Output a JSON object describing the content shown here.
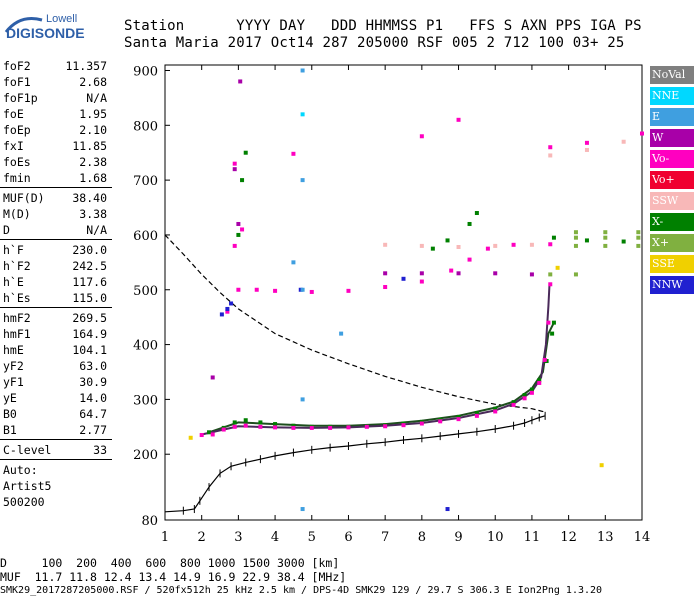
{
  "logo": {
    "line1": "Lowell",
    "line2": "DIGISONDE"
  },
  "header": {
    "row1": [
      "Station",
      "YYYY DAY",
      "DDD HHMMSS P1",
      "FFS S AXN PPS IGA PS"
    ],
    "row2": [
      "Santa Maria",
      "2017 Oct14",
      "287 205000 RSF",
      "005 2 712 100 03+ 25"
    ]
  },
  "params": {
    "group1": [
      {
        "label": "foF2",
        "value": "11.357"
      },
      {
        "label": "foF1",
        "value": "2.68"
      },
      {
        "label": "foF1p",
        "value": "N/A"
      },
      {
        "label": "foE",
        "value": "1.95"
      },
      {
        "label": "foEp",
        "value": "2.10"
      },
      {
        "label": "fxI",
        "value": "11.85"
      },
      {
        "label": "foEs",
        "value": "2.38"
      },
      {
        "label": "fmin",
        "value": "1.68"
      }
    ],
    "group2": [
      {
        "label": "MUF(D)",
        "value": "38.40"
      },
      {
        "label": "M(D)",
        "value": "3.38"
      },
      {
        "label": "D",
        "value": "N/A"
      }
    ],
    "group3": [
      {
        "label": "h`F",
        "value": "230.0"
      },
      {
        "label": "h`F2",
        "value": "242.5"
      },
      {
        "label": "h`E",
        "value": "117.6"
      },
      {
        "label": "h`Es",
        "value": "115.0"
      }
    ],
    "group4": [
      {
        "label": "hmF2",
        "value": "269.5"
      },
      {
        "label": "hmF1",
        "value": "164.9"
      },
      {
        "label": "hmE",
        "value": "104.1"
      },
      {
        "label": "yF2",
        "value": "63.0"
      },
      {
        "label": "yF1",
        "value": "30.9"
      },
      {
        "label": "yE",
        "value": "14.0"
      },
      {
        "label": "B0",
        "value": "64.7"
      },
      {
        "label": "B1",
        "value": "2.77"
      }
    ],
    "group5": [
      {
        "label": "C-level",
        "value": "33"
      }
    ],
    "group6": [
      "Auto:",
      "Artist5",
      "500200"
    ]
  },
  "legend": [
    {
      "label": "NoVal",
      "color": "#7f7f7f"
    },
    {
      "label": "NNE",
      "color": "#00d8ff"
    },
    {
      "label": "E",
      "color": "#3f9fe0"
    },
    {
      "label": "W",
      "color": "#a800a8"
    },
    {
      "label": "Vo-",
      "color": "#ff00c0"
    },
    {
      "label": "Vo+",
      "color": "#f00030"
    },
    {
      "label": "SSW",
      "color": "#f8b8b8"
    },
    {
      "label": "X-",
      "color": "#008000"
    },
    {
      "label": "X+",
      "color": "#80b040"
    },
    {
      "label": "SSE",
      "color": "#f0d000"
    },
    {
      "label": "NNW",
      "color": "#2020d0"
    }
  ],
  "bottom": {
    "line1": "D     100  200  400  600  800 1000 1500 3000 [km]",
    "line2": "MUF  11.7 11.8 12.4 13.4 14.9 16.9 22.9 38.4 [MHz]",
    "line3": "SMK29_2017287205000.RSF / 520fx512h 25 kHz 2.5 km / DPS-4D SMK29 129 / 29.7 S 306.3 E Ion2Png 1.3.20"
  },
  "chart_data": {
    "type": "scatter",
    "x_ticks": [
      1,
      2,
      3,
      4,
      5,
      6,
      7,
      8,
      9,
      10,
      11,
      12,
      13,
      14
    ],
    "y_ticks": [
      80,
      200,
      300,
      400,
      500,
      600,
      700,
      800,
      900
    ],
    "xlim": [
      1,
      14
    ],
    "ylim": [
      80,
      910
    ],
    "xlabel": "",
    "ylabel": "",
    "grid": false,
    "legend_position": "right",
    "series": [
      {
        "name": "X-",
        "color": "#008000",
        "points": [
          [
            2.2,
            240
          ],
          [
            2.6,
            248
          ],
          [
            2.9,
            258
          ],
          [
            3.2,
            262
          ],
          [
            3.6,
            258
          ],
          [
            4,
            255
          ],
          [
            4.5,
            252
          ],
          [
            5,
            250
          ],
          [
            5.5,
            250
          ],
          [
            6,
            250
          ],
          [
            6.5,
            251
          ],
          [
            7,
            253
          ],
          [
            7.5,
            256
          ],
          [
            8,
            259
          ],
          [
            8.5,
            263
          ],
          [
            9,
            268
          ],
          [
            9.5,
            275
          ],
          [
            10,
            283
          ],
          [
            10.5,
            295
          ],
          [
            10.8,
            308
          ],
          [
            11,
            318
          ],
          [
            11.2,
            335
          ],
          [
            11.4,
            370
          ],
          [
            11.55,
            420
          ],
          [
            11.6,
            440
          ],
          [
            3,
            600
          ],
          [
            3.1,
            700
          ],
          [
            3.2,
            750
          ],
          [
            8.3,
            575
          ],
          [
            8.7,
            590
          ],
          [
            9.3,
            620
          ],
          [
            9.5,
            640
          ],
          [
            11.6,
            595
          ],
          [
            12.5,
            590
          ],
          [
            13.5,
            588
          ]
        ]
      },
      {
        "name": "Vo-",
        "color": "#ff00c0",
        "points": [
          [
            2,
            235
          ],
          [
            2.3,
            236
          ],
          [
            2.6,
            245
          ],
          [
            2.9,
            250
          ],
          [
            3.2,
            252
          ],
          [
            3.6,
            250
          ],
          [
            4,
            249
          ],
          [
            4.5,
            248
          ],
          [
            5,
            248
          ],
          [
            5.5,
            248
          ],
          [
            6,
            249
          ],
          [
            6.5,
            250
          ],
          [
            7,
            251
          ],
          [
            7.5,
            253
          ],
          [
            8,
            256
          ],
          [
            8.5,
            260
          ],
          [
            9,
            264
          ],
          [
            9.5,
            270
          ],
          [
            10,
            278
          ],
          [
            10.5,
            290
          ],
          [
            10.8,
            302
          ],
          [
            11,
            312
          ],
          [
            11.2,
            330
          ],
          [
            11.35,
            372
          ],
          [
            11.45,
            440
          ],
          [
            11.5,
            510
          ],
          [
            2.7,
            460
          ],
          [
            3,
            500
          ],
          [
            3.5,
            500
          ],
          [
            4,
            498
          ],
          [
            5,
            496
          ],
          [
            6,
            498
          ],
          [
            7,
            505
          ],
          [
            8,
            515
          ],
          [
            8.8,
            535
          ],
          [
            9.3,
            555
          ],
          [
            9.8,
            575
          ],
          [
            10.5,
            582
          ],
          [
            11.5,
            583
          ],
          [
            2.9,
            580
          ],
          [
            3.1,
            610
          ],
          [
            2.9,
            730
          ],
          [
            4.5,
            748
          ],
          [
            8,
            780
          ],
          [
            9,
            810
          ],
          [
            11.5,
            760
          ],
          [
            12.5,
            768
          ],
          [
            14,
            785
          ]
        ]
      },
      {
        "name": "W",
        "color": "#a800a8",
        "points": [
          [
            2.3,
            340
          ],
          [
            3.05,
            880
          ],
          [
            2.9,
            720
          ],
          [
            3,
            620
          ],
          [
            7,
            530
          ],
          [
            8,
            530
          ],
          [
            9,
            530
          ],
          [
            10,
            530
          ],
          [
            11,
            528
          ]
        ]
      },
      {
        "name": "SSW",
        "color": "#f8b8b8",
        "points": [
          [
            7,
            582
          ],
          [
            8,
            580
          ],
          [
            9,
            578
          ],
          [
            10,
            580
          ],
          [
            11,
            582
          ],
          [
            11.5,
            745
          ],
          [
            12.5,
            755
          ],
          [
            13.5,
            770
          ]
        ]
      },
      {
        "name": "X+",
        "color": "#80b040",
        "points": [
          [
            12.2,
            580
          ],
          [
            13,
            580
          ],
          [
            13.9,
            580
          ],
          [
            12.2,
            595
          ],
          [
            13,
            595
          ],
          [
            13.9,
            595
          ],
          [
            12.2,
            605
          ],
          [
            13,
            605
          ],
          [
            13.9,
            605
          ],
          [
            11.5,
            528
          ],
          [
            12.2,
            528
          ]
        ]
      },
      {
        "name": "NNW",
        "color": "#2020d0",
        "points": [
          [
            2.55,
            455
          ],
          [
            2.7,
            465
          ],
          [
            2.8,
            475
          ],
          [
            7.5,
            520
          ],
          [
            8.7,
            100
          ],
          [
            4.7,
            500
          ]
        ]
      },
      {
        "name": "E",
        "color": "#3f9fe0",
        "points": [
          [
            4.75,
            900
          ],
          [
            4.75,
            700
          ],
          [
            4.75,
            500
          ],
          [
            4.75,
            300
          ],
          [
            4.75,
            100
          ],
          [
            5.8,
            420
          ],
          [
            4.5,
            550
          ]
        ]
      },
      {
        "name": "NNE",
        "color": "#00d8ff",
        "points": [
          [
            4.75,
            820
          ]
        ]
      },
      {
        "name": "SSE",
        "color": "#f0d000",
        "points": [
          [
            1.7,
            230
          ],
          [
            11.7,
            540
          ],
          [
            12.9,
            180
          ]
        ]
      }
    ],
    "profile_curve": {
      "name": "electron density profile",
      "points": [
        [
          1,
          95
        ],
        [
          1.5,
          97
        ],
        [
          1.8,
          100
        ],
        [
          1.95,
          115
        ],
        [
          2.2,
          140
        ],
        [
          2.5,
          165
        ],
        [
          2.8,
          178
        ],
        [
          3.2,
          185
        ],
        [
          3.6,
          191
        ],
        [
          4,
          197
        ],
        [
          4.5,
          203
        ],
        [
          5,
          208
        ],
        [
          5.5,
          212
        ],
        [
          6,
          215
        ],
        [
          6.5,
          219
        ],
        [
          7,
          222
        ],
        [
          7.5,
          226
        ],
        [
          8,
          229
        ],
        [
          8.5,
          233
        ],
        [
          9,
          237
        ],
        [
          9.5,
          241
        ],
        [
          10,
          246
        ],
        [
          10.5,
          252
        ],
        [
          10.8,
          257
        ],
        [
          11,
          262
        ],
        [
          11.2,
          267
        ],
        [
          11.36,
          270
        ]
      ]
    },
    "muf_curve": {
      "name": "MUF curve (dashed)",
      "points": [
        [
          1,
          600
        ],
        [
          1.5,
          565
        ],
        [
          2,
          528
        ],
        [
          2.5,
          495
        ],
        [
          3,
          465
        ],
        [
          4,
          420
        ],
        [
          5,
          390
        ],
        [
          6,
          365
        ],
        [
          7,
          342
        ],
        [
          8,
          322
        ],
        [
          9,
          305
        ],
        [
          10,
          291
        ],
        [
          10.5,
          287
        ],
        [
          11,
          283
        ],
        [
          11.3,
          278
        ],
        [
          11.36,
          272
        ]
      ]
    },
    "trace_x_curve": {
      "name": "X trace (dark)",
      "points": [
        [
          2.2,
          240
        ],
        [
          3,
          258
        ],
        [
          4,
          255
        ],
        [
          5,
          252
        ],
        [
          6,
          252
        ],
        [
          7,
          255
        ],
        [
          8,
          261
        ],
        [
          9,
          270
        ],
        [
          10,
          285
        ],
        [
          10.5,
          296
        ],
        [
          11,
          320
        ],
        [
          11.3,
          350
        ],
        [
          11.45,
          420
        ],
        [
          11.6,
          440
        ]
      ]
    },
    "trace_o_curve": {
      "name": "O trace (dark)",
      "points": [
        [
          2,
          236
        ],
        [
          3,
          251
        ],
        [
          4,
          249
        ],
        [
          5,
          248
        ],
        [
          6,
          249
        ],
        [
          7,
          252
        ],
        [
          8,
          257
        ],
        [
          9,
          266
        ],
        [
          10,
          280
        ],
        [
          10.5,
          292
        ],
        [
          11,
          314
        ],
        [
          11.25,
          340
        ],
        [
          11.38,
          400
        ],
        [
          11.45,
          470
        ],
        [
          11.48,
          510
        ]
      ]
    }
  }
}
